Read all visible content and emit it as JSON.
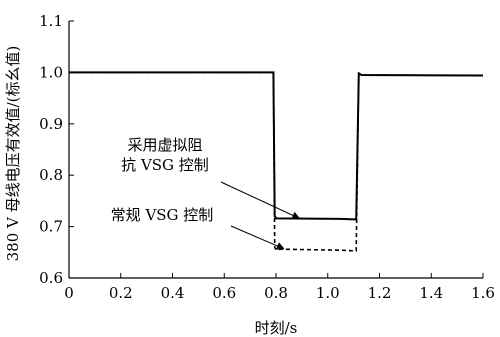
{
  "chart_data": {
    "type": "line",
    "title": "",
    "xlabel": "时刻/s",
    "ylabel": "380 V 母线电压有效值/(标幺值)",
    "xlim": [
      0,
      1.6
    ],
    "ylim": [
      0.6,
      1.1
    ],
    "xticks": [
      0,
      0.2,
      0.4,
      0.6,
      0.8,
      1.0,
      1.2,
      1.4,
      1.6
    ],
    "xtick_labels": [
      "0",
      "0.2",
      "0.4",
      "0.6",
      "0.8",
      "1.0",
      "1.2",
      "1.4",
      "1.6"
    ],
    "yticks": [
      0.6,
      0.7,
      0.8,
      0.9,
      1.0,
      1.1
    ],
    "ytick_labels": [
      "0.6",
      "0.7",
      "0.8",
      "0.9",
      "1.0",
      "1.1"
    ],
    "grid": false,
    "series": [
      {
        "name": "采用虚拟阻抗 VSG 控制",
        "style": "solid",
        "color": "#000000",
        "x": [
          0,
          0.79,
          0.795,
          0.8,
          0.8,
          1.05,
          1.1,
          1.11,
          1.12,
          1.13,
          1.6
        ],
        "y": [
          1.0,
          1.0,
          0.72,
          0.717,
          0.716,
          0.715,
          0.714,
          0.714,
          0.998,
          0.995,
          0.994
        ]
      },
      {
        "name": "常规 VSG 控制",
        "style": "dashed",
        "color": "#000000",
        "x": [
          0,
          0.79,
          0.795,
          0.8,
          0.82,
          1.05,
          1.1,
          1.11,
          1.12,
          1.13,
          1.6
        ],
        "y": [
          1.0,
          1.0,
          0.66,
          0.655,
          0.656,
          0.654,
          0.653,
          0.653,
          0.998,
          0.995,
          0.994
        ]
      }
    ],
    "annotations": [
      {
        "lines": [
          "采用虚拟阻",
          "抗 VSG 控制"
        ],
        "target_series": 0,
        "arrow_to": [
          0.89,
          0.716
        ]
      },
      {
        "lines": [
          "常规 VSG 控制"
        ],
        "target_series": 1,
        "arrow_to": [
          0.83,
          0.657
        ]
      }
    ]
  }
}
